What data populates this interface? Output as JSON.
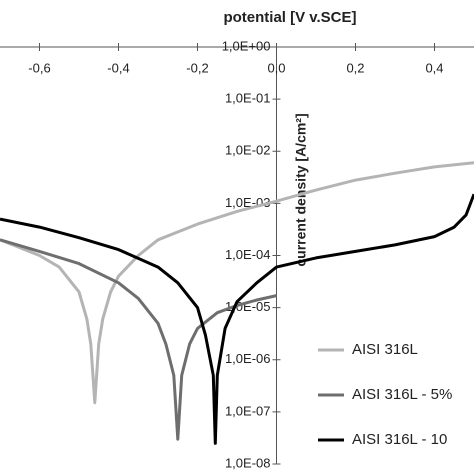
{
  "chart_data": {
    "type": "line",
    "title": "potential [V v.SCE]",
    "y_label": "current density  [A/cm²]",
    "log_y": true,
    "xlim": [
      -0.7,
      0.5
    ],
    "ylim": [
      1e-08,
      1
    ],
    "xticks": [
      {
        "value": -0.6,
        "label": "-0,6"
      },
      {
        "value": -0.4,
        "label": "-0,4"
      },
      {
        "value": -0.2,
        "label": "-0,2"
      },
      {
        "value": 0,
        "label": "0,0"
      },
      {
        "value": 0.2,
        "label": "0,2"
      },
      {
        "value": 0.4,
        "label": "0,4"
      }
    ],
    "yticks": [
      {
        "value": 1,
        "label": "1,0E+00"
      },
      {
        "value": 0.1,
        "label": "1,0E-01"
      },
      {
        "value": 0.01,
        "label": "1,0E-02"
      },
      {
        "value": 0.001,
        "label": "1,0E-03"
      },
      {
        "value": 0.0001,
        "label": "1,0E-04"
      },
      {
        "value": 1e-05,
        "label": "1,0E-05"
      },
      {
        "value": 1e-06,
        "label": "1,0E-06"
      },
      {
        "value": 1e-07,
        "label": "1,0E-07"
      },
      {
        "value": 1e-08,
        "label": "1,0E-08"
      }
    ],
    "series": [
      {
        "name": "AISI 316L",
        "color": "#b4b4b4",
        "x": [
          -0.7,
          -0.6,
          -0.55,
          -0.5,
          -0.48,
          -0.47,
          -0.46,
          -0.45,
          -0.44,
          -0.42,
          -0.4,
          -0.35,
          -0.3,
          -0.2,
          -0.1,
          0,
          0.1,
          0.2,
          0.3,
          0.4,
          0.5
        ],
        "values": [
          0.0002,
          0.0001,
          6e-05,
          2e-05,
          6e-06,
          2e-06,
          1.5e-07,
          2e-06,
          6e-06,
          2e-05,
          4e-05,
          0.0001,
          0.0002,
          0.0004,
          0.0007,
          0.0011,
          0.0018,
          0.0028,
          0.0038,
          0.005,
          0.006
        ]
      },
      {
        "name": "AISI 316L - 5%",
        "color": "#6e6e6e",
        "x": [
          -0.7,
          -0.6,
          -0.5,
          -0.4,
          -0.35,
          -0.3,
          -0.28,
          -0.26,
          -0.25,
          -0.24,
          -0.22,
          -0.2,
          -0.15,
          -0.1,
          -0.05,
          0
        ],
        "values": [
          0.0002,
          0.00012,
          7e-05,
          3e-05,
          1.5e-05,
          5e-06,
          2e-06,
          5e-07,
          3e-08,
          5e-07,
          2e-06,
          4e-06,
          8e-06,
          1.1e-05,
          1.4e-05,
          1.7e-05
        ]
      },
      {
        "name": "AISI 316L - 10",
        "color": "#000000",
        "x": [
          -0.7,
          -0.6,
          -0.5,
          -0.4,
          -0.3,
          -0.25,
          -0.2,
          -0.18,
          -0.16,
          -0.155,
          -0.15,
          -0.13,
          -0.1,
          -0.05,
          0,
          0.1,
          0.2,
          0.3,
          0.4,
          0.45,
          0.48,
          0.5
        ],
        "values": [
          0.0005,
          0.00035,
          0.00022,
          0.00013,
          6e-05,
          3e-05,
          1e-05,
          3e-06,
          5e-07,
          2.5e-08,
          5e-07,
          4e-06,
          1.3e-05,
          3e-05,
          6e-05,
          9e-05,
          0.00012,
          0.00016,
          0.00023,
          0.00035,
          0.0006,
          0.0015
        ]
      }
    ]
  }
}
